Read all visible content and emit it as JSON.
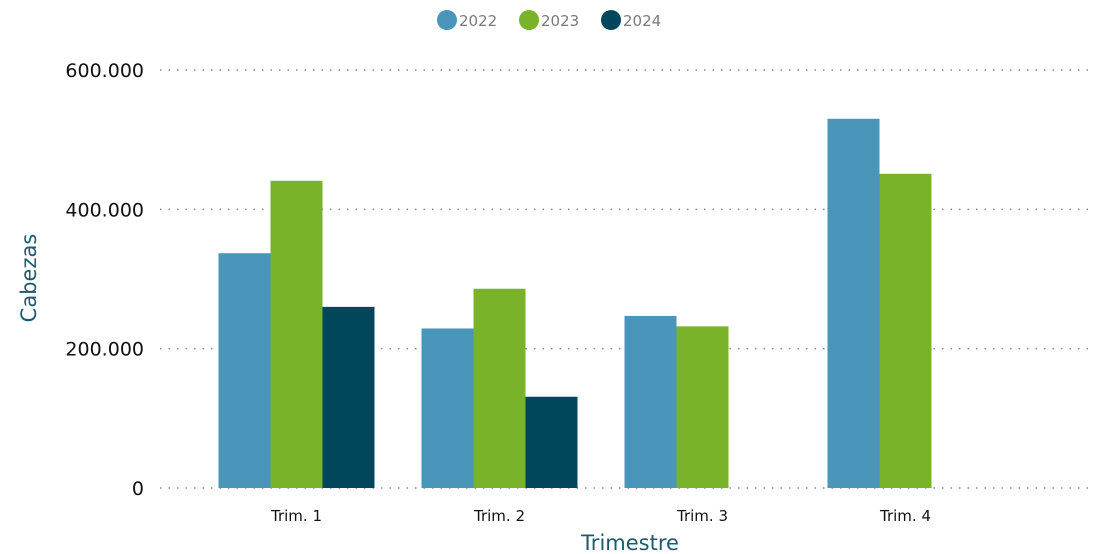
{
  "chart_data": {
    "type": "bar",
    "categories": [
      "Trim. 1",
      "Trim. 2",
      "Trim. 3",
      "Trim. 4"
    ],
    "series": [
      {
        "name": "2022",
        "color": "#4a96bb",
        "values": [
          337000,
          229000,
          247000,
          530000
        ]
      },
      {
        "name": "2023",
        "color": "#78b32a",
        "values": [
          441000,
          286000,
          232000,
          451000
        ]
      },
      {
        "name": "2024",
        "color": "#01475c",
        "values": [
          260000,
          131000,
          null,
          null
        ]
      }
    ],
    "xlabel": "Trimestre",
    "ylabel": "Cabezas",
    "ylim": [
      0,
      600000
    ],
    "yticks": [
      0,
      200000,
      400000,
      600000
    ],
    "ytick_labels": [
      "0",
      "200.000",
      "400.000",
      "600.000"
    ],
    "grid": true,
    "legend_position": "top-center"
  }
}
